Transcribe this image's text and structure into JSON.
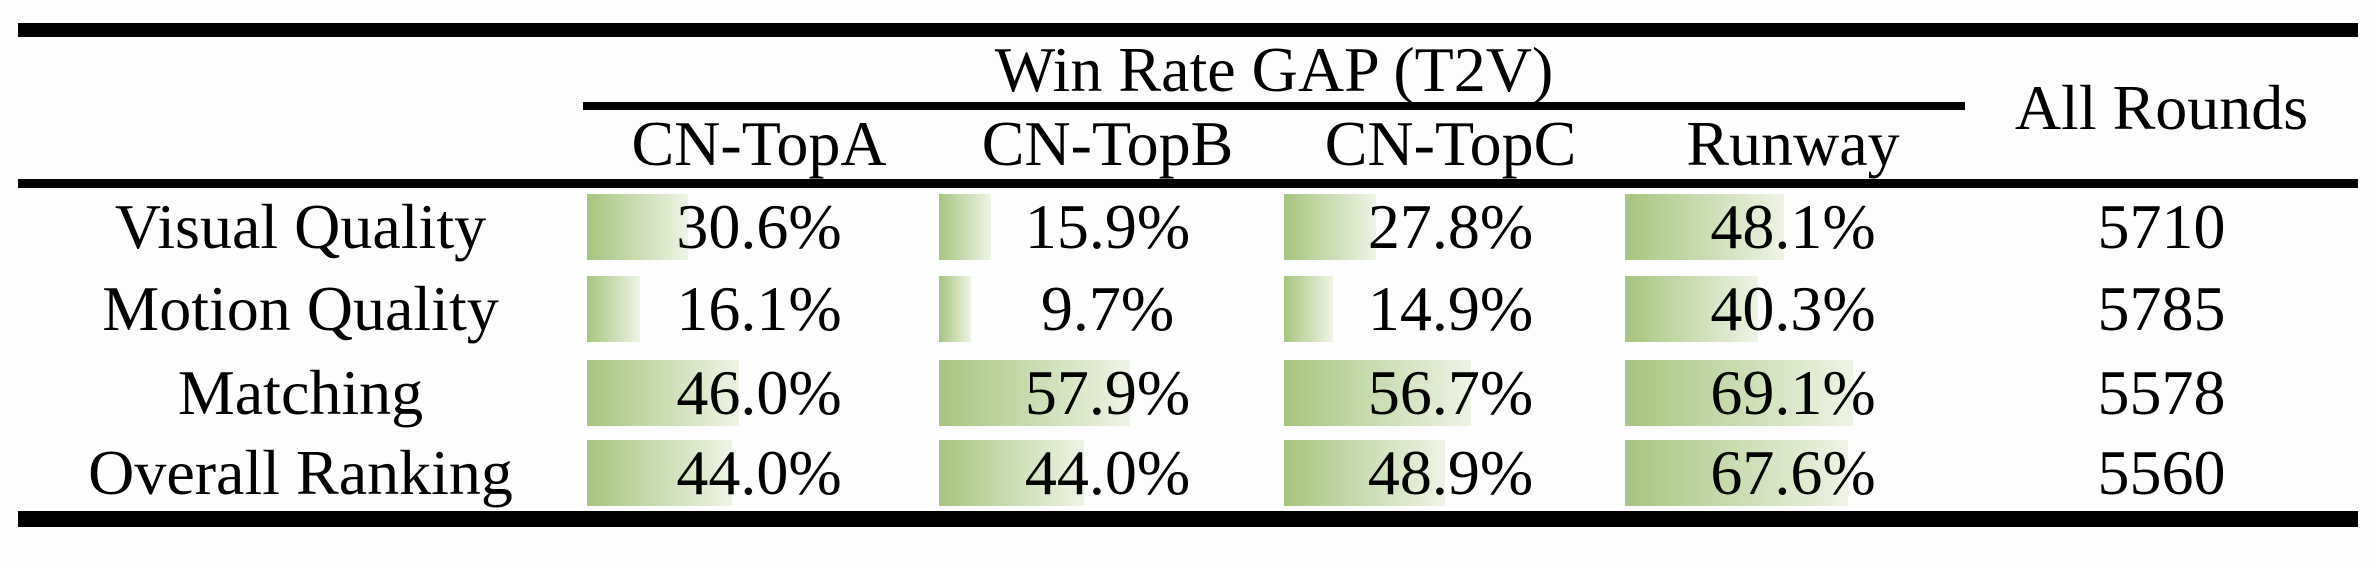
{
  "table": {
    "group_header": "Win Rate GAP (T2V)",
    "all_rounds_header": "All Rounds",
    "columns": [
      "CN-TopA",
      "CN-TopB",
      "CN-TopC",
      "Runway"
    ],
    "rows": [
      {
        "label": "Visual Quality",
        "cells": [
          {
            "text": "30.6%",
            "pct": 30.6
          },
          {
            "text": "15.9%",
            "pct": 15.9
          },
          {
            "text": "27.8%",
            "pct": 27.8
          },
          {
            "text": "48.1%",
            "pct": 48.1
          }
        ],
        "all_rounds": "5710"
      },
      {
        "label": "Motion Quality",
        "cells": [
          {
            "text": "16.1%",
            "pct": 16.1
          },
          {
            "text": "9.7%",
            "pct": 9.7
          },
          {
            "text": "14.9%",
            "pct": 14.9
          },
          {
            "text": "40.3%",
            "pct": 40.3
          }
        ],
        "all_rounds": "5785"
      },
      {
        "label": "Matching",
        "cells": [
          {
            "text": "46.0%",
            "pct": 46.0
          },
          {
            "text": "57.9%",
            "pct": 57.9
          },
          {
            "text": "56.7%",
            "pct": 56.7
          },
          {
            "text": "69.1%",
            "pct": 69.1
          }
        ],
        "all_rounds": "5578"
      },
      {
        "label": "Overall Ranking",
        "cells": [
          {
            "text": "44.0%",
            "pct": 44.0
          },
          {
            "text": "44.0%",
            "pct": 44.0
          },
          {
            "text": "48.9%",
            "pct": 48.9
          },
          {
            "text": "67.6%",
            "pct": 67.6
          }
        ],
        "all_rounds": "5560"
      }
    ],
    "colors": {
      "bar_gradient_start": "#a6c57f",
      "bar_gradient_end": "#eef4e5",
      "rule": "#000000",
      "text": "#000000"
    }
  },
  "chart_data": {
    "type": "table",
    "title": "Win Rate GAP (T2V)",
    "categories": [
      "Visual Quality",
      "Motion Quality",
      "Matching",
      "Overall Ranking"
    ],
    "series": [
      {
        "name": "CN-TopA",
        "values": [
          30.6,
          16.1,
          46.0,
          44.0
        ]
      },
      {
        "name": "CN-TopB",
        "values": [
          15.9,
          9.7,
          57.9,
          44.0
        ]
      },
      {
        "name": "CN-TopC",
        "values": [
          27.8,
          14.9,
          56.7,
          48.9
        ]
      },
      {
        "name": "Runway",
        "values": [
          48.1,
          40.3,
          69.1,
          67.6
        ]
      },
      {
        "name": "All Rounds",
        "values": [
          5710,
          5785,
          5578,
          5560
        ]
      }
    ],
    "value_unit": "percent (All Rounds is a count)",
    "bar_scale_range": [
      0,
      100
    ]
  }
}
